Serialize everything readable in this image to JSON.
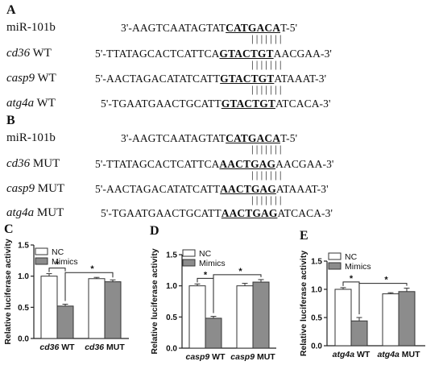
{
  "panelA": {
    "letter": "A",
    "rows": [
      {
        "label_it": "",
        "label_rest": "miR-101b",
        "pre": "3'-AAGTCAATAGTAT",
        "hl": "CATGACA",
        "post": "T-5'"
      },
      {
        "label_it": "cd36",
        "label_rest": " WT",
        "pre": "5'-TTATAGCACTCATTCA",
        "hl": "GTACTGT",
        "post": "AACGAA-3'"
      },
      {
        "label_it": "casp9",
        "label_rest": " WT",
        "pre": "5'-AACTAGACATATCATT",
        "hl": "GTACTGT",
        "post": "ATAAAT-3'"
      },
      {
        "label_it": "atg4a",
        "label_rest": " WT",
        "pre": "5'-TGAATGAACTGCATT",
        "hl": "GTACTGT",
        "post": "ATCACA-3'"
      }
    ],
    "pair_lines": "|||||||"
  },
  "panelB": {
    "letter": "B",
    "rows": [
      {
        "label_it": "",
        "label_rest": "miR-101b",
        "pre": "3'-AAGTCAATAGTAT",
        "hl": "CATGACA",
        "post": "T-5'"
      },
      {
        "label_it": "cd36",
        "label_rest": " MUT",
        "pre": "5'-TTATAGCACTCATTCA",
        "hl": "AACTGAG",
        "post": "AACGAA-3'"
      },
      {
        "label_it": "casp9",
        "label_rest": " MUT",
        "pre": "5'-AACTAGACATATCATT",
        "hl": "AACTGAG",
        "post": "ATAAAT-3'"
      },
      {
        "label_it": "atg4a",
        "label_rest": " MUT",
        "pre": "5'-TGAATGAACTGCATT",
        "hl": "AACTGAG",
        "post": "ATCACA-3'"
      }
    ],
    "pair_lines": "|||||||"
  },
  "chart_data": [
    {
      "panel": "C",
      "type": "bar",
      "ylabel": "Relative luciferase activity",
      "ylim": [
        0,
        1.5
      ],
      "yticks": [
        "0.0",
        "0.5",
        "1.0",
        "1.5"
      ],
      "categories": [
        {
          "it": "cd36",
          "rest": " WT"
        },
        {
          "it": "cd36",
          "rest": " MUT"
        }
      ],
      "series": [
        {
          "name": "NC",
          "values": [
            1.0,
            0.96
          ],
          "errors": [
            0.04,
            0.02
          ],
          "color": "#ffffff"
        },
        {
          "name": "Mimics",
          "values": [
            0.52,
            0.91
          ],
          "errors": [
            0.03,
            0.03
          ],
          "color": "#8c8c8c"
        }
      ],
      "significance": [
        "*",
        "*"
      ],
      "legend": "top-left"
    },
    {
      "panel": "D",
      "type": "bar",
      "ylabel": "Relative luciferase activity",
      "ylim": [
        0,
        1.5
      ],
      "yticks": [
        "0.0",
        "0.5",
        "1.0",
        "1.5"
      ],
      "categories": [
        {
          "it": "casp9",
          "rest": " WT"
        },
        {
          "it": "casp9",
          "rest": " MUT"
        }
      ],
      "series": [
        {
          "name": "NC",
          "values": [
            1.0,
            1.0
          ],
          "errors": [
            0.03,
            0.04
          ],
          "color": "#ffffff"
        },
        {
          "name": "Mimics",
          "values": [
            0.48,
            1.06
          ],
          "errors": [
            0.03,
            0.04
          ],
          "color": "#8c8c8c"
        }
      ],
      "significance": [
        "*",
        "*"
      ],
      "legend": "top-left"
    },
    {
      "panel": "E",
      "type": "bar",
      "ylabel": "Relative luciferase activity",
      "ylim": [
        0,
        1.5
      ],
      "yticks": [
        "0.0",
        "0.5",
        "1.0",
        "1.5"
      ],
      "categories": [
        {
          "it": "atg4a",
          "rest": " WT"
        },
        {
          "it": "atg4a",
          "rest": " MUT"
        }
      ],
      "series": [
        {
          "name": "NC",
          "values": [
            1.0,
            0.92
          ],
          "errors": [
            0.03,
            0.02
          ],
          "color": "#ffffff"
        },
        {
          "name": "Mimics",
          "values": [
            0.44,
            0.96
          ],
          "errors": [
            0.06,
            0.06
          ],
          "color": "#8c8c8c"
        }
      ],
      "significance": [
        "*",
        "*"
      ],
      "legend": "top-left"
    }
  ]
}
